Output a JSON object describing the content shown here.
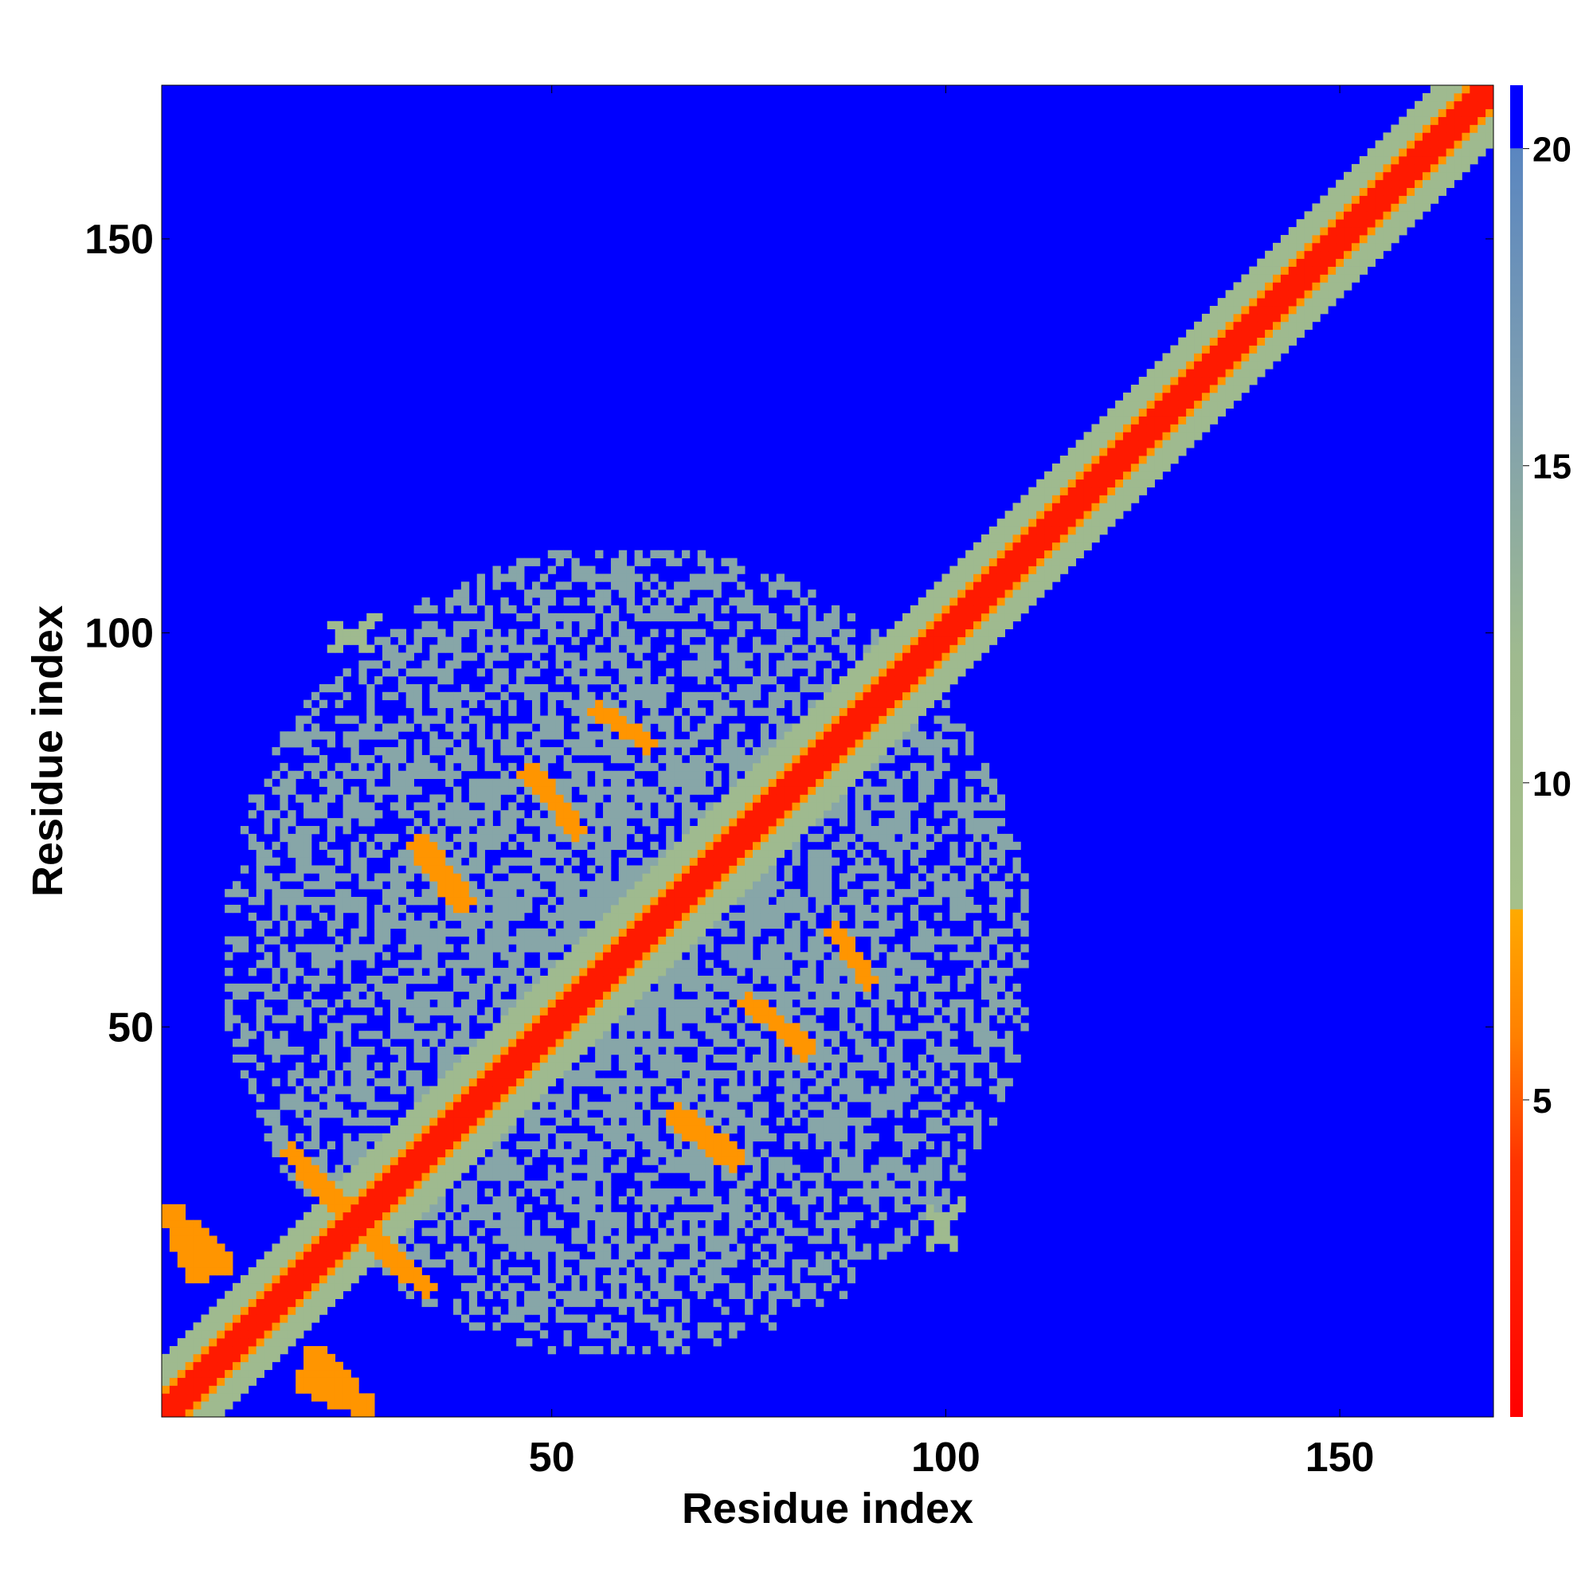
{
  "chart_data": {
    "type": "heatmap",
    "title": "",
    "xlabel": "Residue index",
    "ylabel": "Residue index",
    "xlim": [
      1,
      169
    ],
    "ylim": [
      1,
      169
    ],
    "x_ticks": [
      50,
      100,
      150
    ],
    "x_tick_labels": [
      "50",
      "100",
      "150"
    ],
    "y_ticks": [
      50,
      100,
      150
    ],
    "y_tick_labels": [
      "50",
      "100",
      "150"
    ],
    "colorbar": {
      "range": [
        0,
        21
      ],
      "ticks": [
        5,
        10,
        15,
        20
      ],
      "tick_labels": [
        "5",
        "10",
        "15",
        "20"
      ],
      "stops": [
        {
          "value": 0,
          "color": "#ff0000"
        },
        {
          "value": 4,
          "color": "#ff3300"
        },
        {
          "value": 6,
          "color": "#ff8000"
        },
        {
          "value": 8,
          "color": "#ffaa00"
        },
        {
          "value": 8.01,
          "color": "#a6c08a"
        },
        {
          "value": 12,
          "color": "#9fba8f"
        },
        {
          "value": 16,
          "color": "#7f9fb0"
        },
        {
          "value": 20,
          "color": "#5a86c0"
        },
        {
          "value": 20.01,
          "color": "#0000ff"
        },
        {
          "value": 21,
          "color": "#0000ff"
        }
      ]
    },
    "regions": [
      {
        "kind": "diagonal",
        "half_width": 2.2,
        "value": 2
      },
      {
        "kind": "diagonal",
        "half_width": 3.3,
        "value": 7
      },
      {
        "kind": "diagonal",
        "half_width": 7,
        "value": 12
      },
      {
        "kind": "core",
        "x_range": [
          8,
          111
        ],
        "y_range": [
          8,
          111
        ],
        "value": 15
      },
      {
        "kind": "segment",
        "from": [
          4,
          24
        ],
        "to": [
          8,
          20
        ],
        "half_width": 1.6,
        "value": 7
      },
      {
        "kind": "segment",
        "from": [
          19,
          5
        ],
        "to": [
          26,
          2
        ],
        "half_width": 1.6,
        "value": 7
      },
      {
        "kind": "segment",
        "from": [
          18,
          33
        ],
        "to": [
          26,
          24
        ],
        "half_width": 1.2,
        "value": 7
      },
      {
        "kind": "segment",
        "from": [
          28,
          22
        ],
        "to": [
          34,
          17
        ],
        "half_width": 1.2,
        "value": 7
      },
      {
        "kind": "segment",
        "from": [
          34,
          73
        ],
        "to": [
          39,
          66
        ],
        "half_width": 1.2,
        "value": 7
      },
      {
        "kind": "segment",
        "from": [
          47,
          82
        ],
        "to": [
          52,
          77
        ],
        "half_width": 1.2,
        "value": 7
      },
      {
        "kind": "segment",
        "from": [
          56,
          90
        ],
        "to": [
          62,
          86
        ],
        "half_width": 1.0,
        "value": 7
      },
      {
        "kind": "segment",
        "from": [
          66,
          38
        ],
        "to": [
          73,
          33
        ],
        "half_width": 1.2,
        "value": 7
      },
      {
        "kind": "segment",
        "from": [
          75,
          53
        ],
        "to": [
          82,
          48
        ],
        "half_width": 1.2,
        "value": 7
      },
      {
        "kind": "segment",
        "from": [
          86,
          62
        ],
        "to": [
          89,
          58
        ],
        "half_width": 1.0,
        "value": 7
      },
      {
        "kind": "segment",
        "from": [
          98,
          27
        ],
        "to": [
          101,
          22
        ],
        "half_width": 0.8,
        "value": 12
      },
      {
        "kind": "segment",
        "from": [
          22,
          98
        ],
        "to": [
          28,
          102
        ],
        "half_width": 0.8,
        "value": 12
      }
    ]
  }
}
